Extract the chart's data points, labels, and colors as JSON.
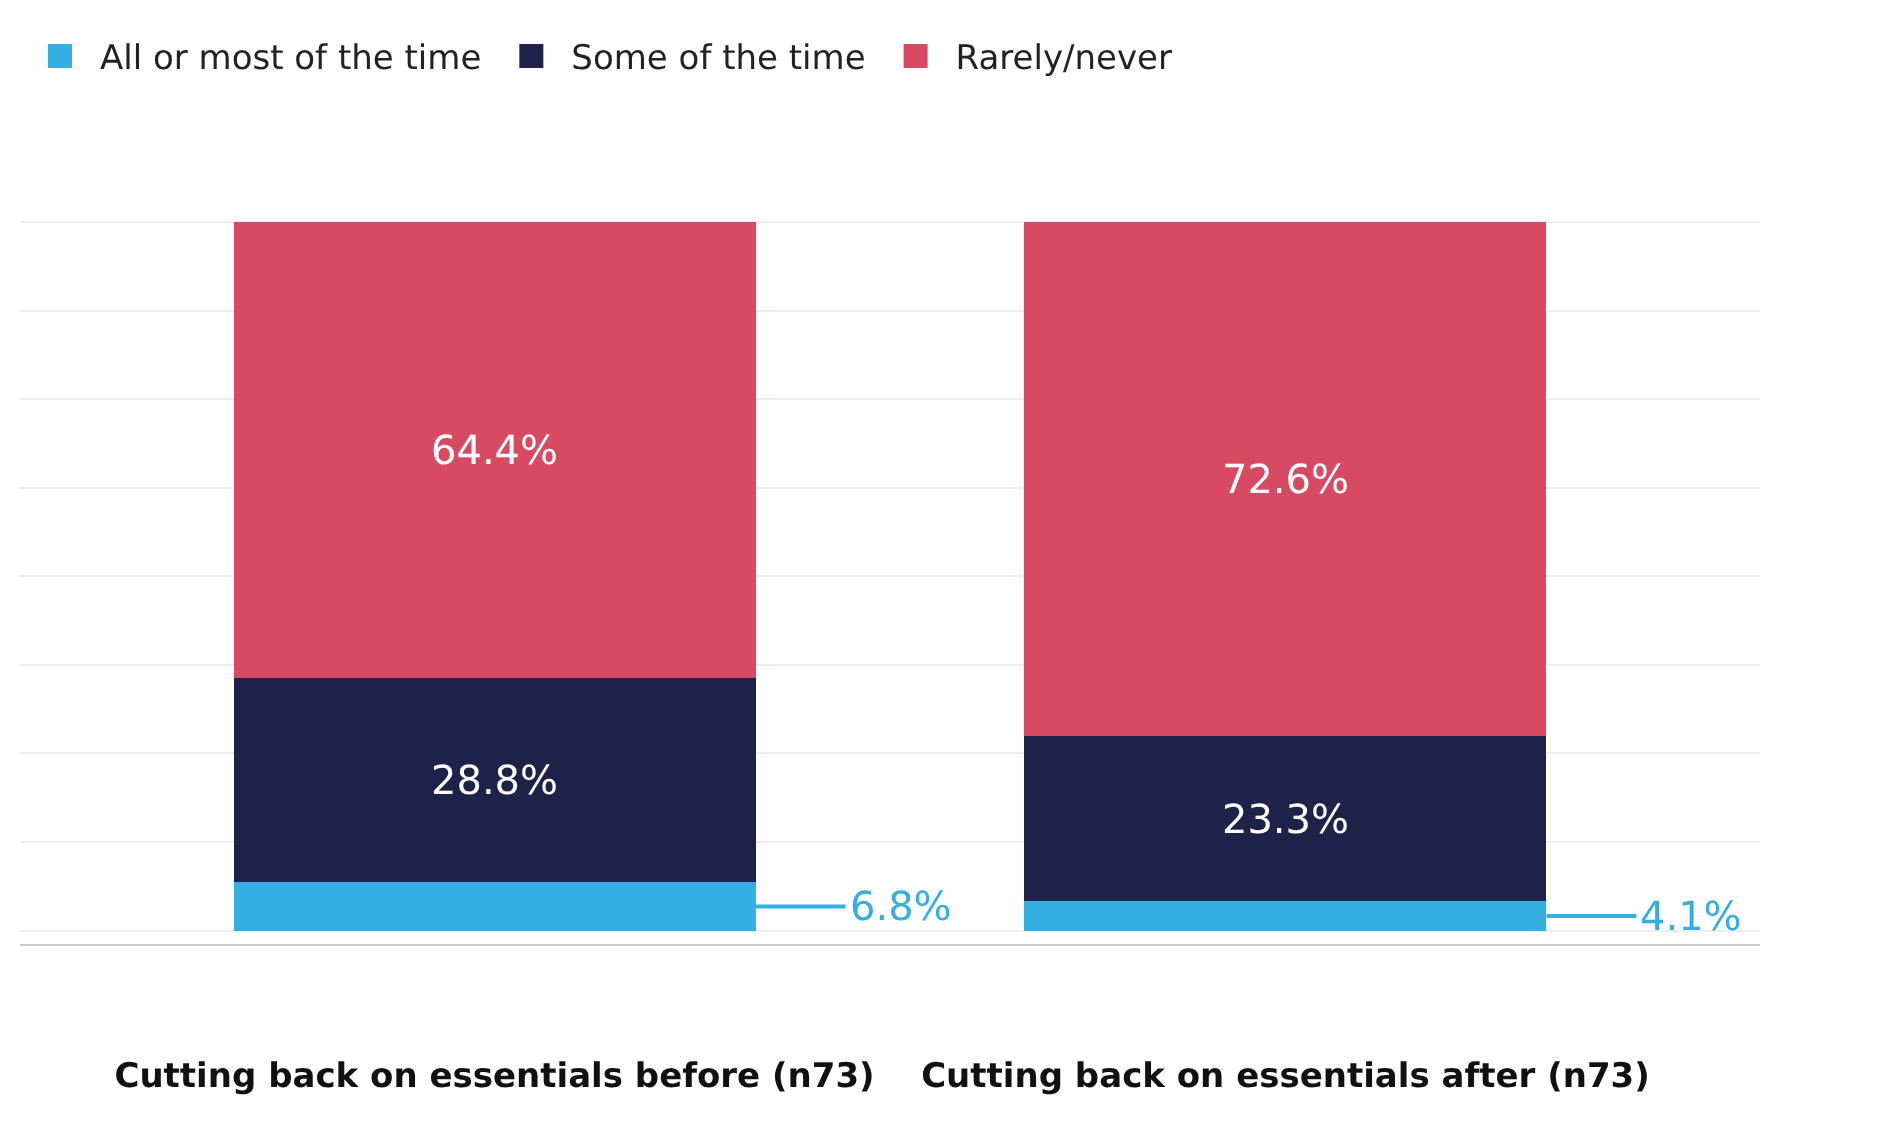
{
  "chart_data": {
    "type": "bar",
    "stacked": true,
    "categories": [
      "Cutting back on essentials before (n73)",
      "Cutting back on essentials after (n73)"
    ],
    "series": [
      {
        "name": "All or most of the time",
        "color": "#35aee2",
        "values": [
          6.8,
          4.1
        ],
        "value_labels": [
          "6.8%",
          "4.1%"
        ]
      },
      {
        "name": "Some of the time",
        "color": "#1f2248",
        "values": [
          28.8,
          23.3
        ],
        "value_labels": [
          "28.8%",
          "23.3%"
        ]
      },
      {
        "name": "Rarely/never",
        "color": "#d84a62",
        "values": [
          64.4,
          72.6
        ],
        "value_labels": [
          "64.4%",
          "72.6%"
        ]
      }
    ],
    "yticks": [
      {
        "value": 0,
        "label": null
      },
      {
        "value": 12.5,
        "label": null
      },
      {
        "value": 25,
        "label": null
      },
      {
        "value": 37.5,
        "label": null
      },
      {
        "value": 50,
        "label": null
      },
      {
        "value": 62.5,
        "label": null
      },
      {
        "value": 75,
        "label": null
      },
      {
        "value": 87.5,
        "label": null
      },
      {
        "value": 100,
        "label": null
      }
    ],
    "grid": "y",
    "legend": "top left",
    "tick_labels": "x"
  }
}
